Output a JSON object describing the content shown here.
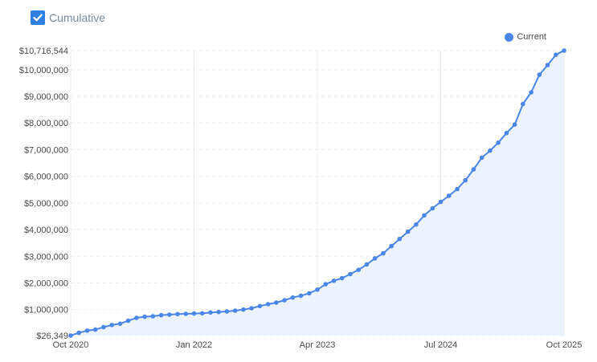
{
  "controls": {
    "cumulative_label": "Cumulative",
    "cumulative_checked": true
  },
  "colors": {
    "accent": "#2f7fe0",
    "series": "#4b86e8",
    "fill": "#edf3fc",
    "grid": "#e9edf2"
  },
  "chart_data": {
    "type": "area",
    "xlabel": "",
    "ylabel": "",
    "grid": true,
    "legend_position": "top-right",
    "x_ticks": [
      "Oct 2020",
      "Jan 2022",
      "Apr 2023",
      "Jul 2024",
      "Oct 2025"
    ],
    "y_ticks": [
      "$26,349",
      "$1,000,000",
      "$2,000,000",
      "$3,000,000",
      "$4,000,000",
      "$5,000,000",
      "$6,000,000",
      "$7,000,000",
      "$8,000,000",
      "$9,000,000",
      "$10,000,000",
      "$10,716,544"
    ],
    "y_tick_values": [
      26349,
      1000000,
      2000000,
      3000000,
      4000000,
      5000000,
      6000000,
      7000000,
      8000000,
      9000000,
      10000000,
      10716544
    ],
    "ylim": [
      26349,
      10716544
    ],
    "x_range": [
      "2020-10",
      "2025-10"
    ],
    "series": [
      {
        "name": "Current",
        "x": [
          "2020-10",
          "2020-11",
          "2020-12",
          "2021-01",
          "2021-02",
          "2021-03",
          "2021-04",
          "2021-05",
          "2021-06",
          "2021-07",
          "2021-08",
          "2021-09",
          "2021-10",
          "2021-11",
          "2021-12",
          "2022-01",
          "2022-02",
          "2022-03",
          "2022-04",
          "2022-05",
          "2022-06",
          "2022-07",
          "2022-08",
          "2022-09",
          "2022-10",
          "2022-11",
          "2022-12",
          "2023-01",
          "2023-02",
          "2023-03",
          "2023-04",
          "2023-05",
          "2023-06",
          "2023-07",
          "2023-08",
          "2023-09",
          "2023-10",
          "2023-11",
          "2023-12",
          "2024-01",
          "2024-02",
          "2024-03",
          "2024-04",
          "2024-05",
          "2024-06",
          "2024-07",
          "2024-08",
          "2024-09",
          "2024-10",
          "2024-11",
          "2024-12",
          "2025-01",
          "2025-02",
          "2025-03",
          "2025-04",
          "2025-05",
          "2025-06",
          "2025-07",
          "2025-08",
          "2025-09",
          "2025-10"
        ],
        "values": [
          26349,
          130000,
          210000,
          250000,
          340000,
          420000,
          470000,
          580000,
          690000,
          730000,
          750000,
          790000,
          810000,
          830000,
          840000,
          850000,
          860000,
          890000,
          910000,
          930000,
          960000,
          1000000,
          1050000,
          1130000,
          1200000,
          1260000,
          1350000,
          1450000,
          1520000,
          1610000,
          1750000,
          1950000,
          2080000,
          2180000,
          2330000,
          2490000,
          2690000,
          2920000,
          3110000,
          3380000,
          3650000,
          3920000,
          4190000,
          4530000,
          4800000,
          5040000,
          5270000,
          5520000,
          5850000,
          6260000,
          6700000,
          6960000,
          7260000,
          7620000,
          7940000,
          8710000,
          9150000,
          9810000,
          10170000,
          10560000,
          10716544
        ]
      }
    ]
  }
}
